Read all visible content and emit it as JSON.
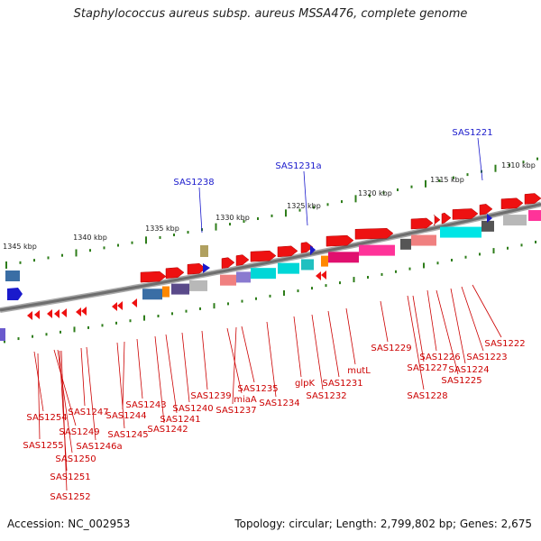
{
  "title": "Staphylococcus aureus subsp. aureus MSSA476, complete genome",
  "footer": {
    "accession": "Accession: NC_002953",
    "summary": "Topology: circular; Length: 2,799,802 bp; Genes: 2,675"
  },
  "scale_labels": [
    "1345 kbp",
    "1340 kbp",
    "1335 kbp",
    "1330 kbp",
    "1325 kbp",
    "1320 kbp",
    "1315 kbp",
    "1310 kbp"
  ],
  "top_labels": [
    "SAS1238",
    "SAS1231a",
    "SAS1221"
  ],
  "gene_labels": [
    "SAS1254",
    "SAS1255",
    "SAS1249",
    "SAS1250",
    "SAS1251",
    "SAS1252",
    "SAS1247",
    "SAS1246a",
    "SAS1245",
    "SAS1244",
    "SAS1243",
    "SAS1242",
    "SAS1241",
    "SAS1240",
    "SAS1239",
    "miaA",
    "SAS1237",
    "SAS1235",
    "SAS1234",
    "glpK",
    "SAS1232",
    "SAS1231",
    "mutL",
    "SAS1229",
    "SAS1228",
    "SAS1227",
    "SAS1226",
    "SAS1225",
    "SAS1224",
    "SAS1223",
    "SAS1222"
  ],
  "colors": {
    "forward_gene": "#ee1111",
    "reverse_gene": "#1a1acc",
    "label_red": "#cc0000",
    "label_blue": "#1a1acc",
    "tick_green": "#2e7d1a",
    "backbone": "#888888"
  }
}
